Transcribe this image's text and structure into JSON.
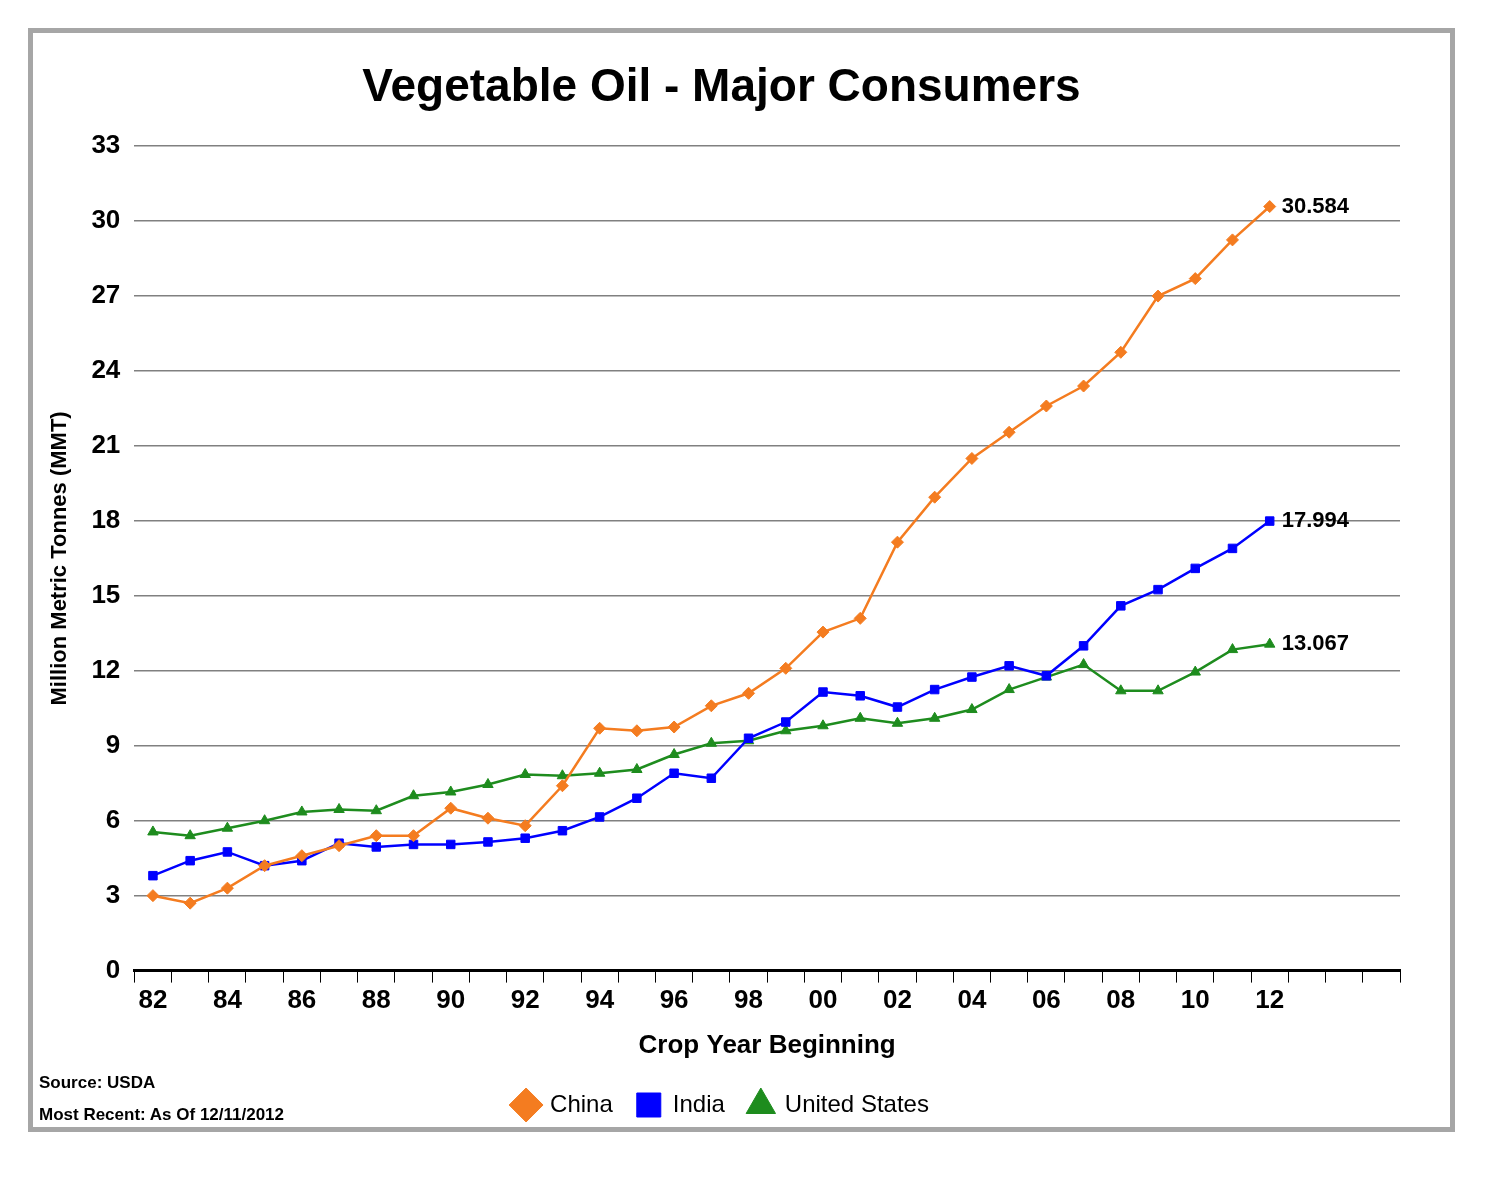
{
  "chart_data": {
    "type": "line",
    "title": "Vegetable Oil - Major Consumers",
    "x_label": "Crop Year Beginning",
    "y_label": "Million Metric Tonnes (MMT)",
    "source": "Source: USDA",
    "note": "Most Recent: As Of 12/11/2012",
    "categories": [
      "82",
      null,
      "84",
      null,
      "86",
      null,
      "88",
      null,
      "90",
      null,
      "92",
      null,
      "94",
      null,
      "96",
      null,
      "98",
      null,
      "00",
      null,
      "02",
      null,
      "04",
      null,
      "06",
      null,
      "08",
      null,
      "10",
      null,
      "12",
      null,
      null,
      null
    ],
    "ylim": [
      0,
      33
    ],
    "yticks": [
      0,
      3,
      6,
      9,
      12,
      15,
      18,
      21,
      24,
      27,
      30,
      33
    ],
    "grid": "y",
    "legend": "bottom",
    "series": [
      {
        "name": "China",
        "color": "#f47c20",
        "marker": "diamond",
        "values": [
          3.0,
          2.7,
          3.3,
          4.2,
          4.6,
          5.0,
          5.4,
          5.4,
          6.5,
          6.1,
          5.8,
          7.4,
          9.7,
          9.6,
          9.75,
          10.6,
          11.1,
          12.1,
          13.55,
          14.1,
          17.15,
          18.95,
          20.5,
          21.55,
          22.6,
          23.4,
          24.75,
          27.0,
          27.7,
          29.25,
          30.584,
          null,
          null,
          null
        ],
        "value_labels": [
          null,
          null,
          null,
          null,
          null,
          null,
          null,
          null,
          null,
          null,
          null,
          null,
          null,
          null,
          null,
          null,
          null,
          null,
          null,
          null,
          null,
          null,
          null,
          null,
          null,
          null,
          null,
          null,
          null,
          null,
          "30.584",
          null,
          null,
          null
        ]
      },
      {
        "name": "India",
        "color": "#0000ff",
        "marker": "square",
        "values": [
          3.8,
          4.4,
          4.75,
          4.2,
          4.4,
          5.1,
          4.95,
          5.05,
          5.05,
          5.15,
          5.3,
          5.6,
          6.15,
          6.9,
          7.9,
          7.7,
          9.3,
          9.95,
          11.15,
          11.0,
          10.55,
          11.25,
          11.75,
          12.2,
          11.8,
          13.0,
          14.6,
          15.25,
          16.1,
          16.9,
          17.994,
          null,
          null,
          null
        ],
        "value_labels": [
          null,
          null,
          null,
          null,
          null,
          null,
          null,
          null,
          null,
          null,
          null,
          null,
          null,
          null,
          null,
          null,
          null,
          null,
          null,
          null,
          null,
          null,
          null,
          null,
          null,
          null,
          null,
          null,
          null,
          null,
          "17.994",
          null,
          null,
          null
        ]
      },
      {
        "name": "United States",
        "color": "#1e8c1e",
        "marker": "triangle",
        "values": [
          5.55,
          5.4,
          5.7,
          6.0,
          6.35,
          6.45,
          6.4,
          7.0,
          7.15,
          7.45,
          7.85,
          7.8,
          7.9,
          8.05,
          8.65,
          9.1,
          9.2,
          9.6,
          9.8,
          10.1,
          9.9,
          10.1,
          10.45,
          11.25,
          11.75,
          12.25,
          11.2,
          11.2,
          11.95,
          12.85,
          13.067,
          null,
          null,
          null
        ],
        "value_labels": [
          null,
          null,
          null,
          null,
          null,
          null,
          null,
          null,
          null,
          null,
          null,
          null,
          null,
          null,
          null,
          null,
          null,
          null,
          null,
          null,
          null,
          null,
          null,
          null,
          null,
          null,
          null,
          null,
          null,
          null,
          "13.067",
          null,
          null,
          null
        ]
      }
    ]
  }
}
